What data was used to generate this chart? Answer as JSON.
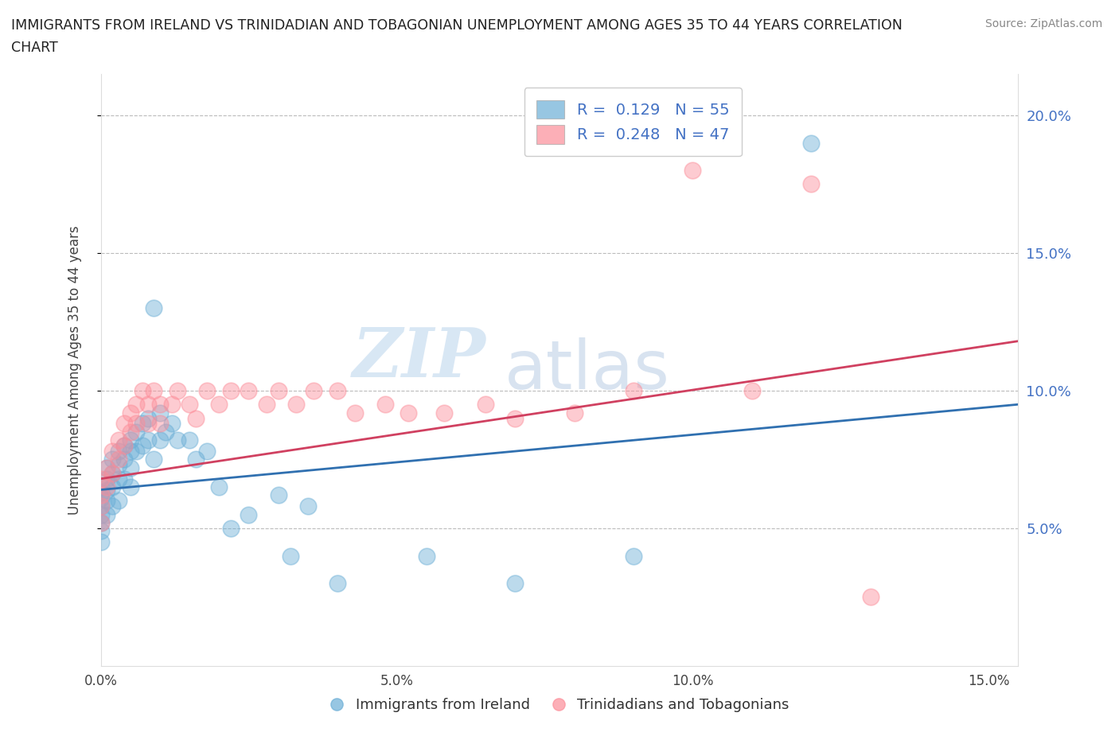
{
  "title_line1": "IMMIGRANTS FROM IRELAND VS TRINIDADIAN AND TOBAGONIAN UNEMPLOYMENT AMONG AGES 35 TO 44 YEARS CORRELATION",
  "title_line2": "CHART",
  "source": "Source: ZipAtlas.com",
  "ylabel": "Unemployment Among Ages 35 to 44 years",
  "xlim": [
    0.0,
    0.155
  ],
  "ylim": [
    0.0,
    0.215
  ],
  "xticks": [
    0.0,
    0.05,
    0.1,
    0.15
  ],
  "yticks": [
    0.05,
    0.1,
    0.15,
    0.2
  ],
  "xtick_labels": [
    "0.0%",
    "5.0%",
    "10.0%",
    "15.0%"
  ],
  "ytick_labels": [
    "5.0%",
    "10.0%",
    "15.0%",
    "20.0%"
  ],
  "legend1_label": "R =  0.129   N = 55",
  "legend2_label": "R =  0.248   N = 47",
  "legend_bottom_label1": "Immigrants from Ireland",
  "legend_bottom_label2": "Trinidadians and Tobagonians",
  "ireland_color": "#6baed6",
  "trinidad_color": "#fc8d99",
  "ireland_line_color": "#3070b0",
  "trinidad_line_color": "#d04060",
  "watermark_zip": "ZIP",
  "watermark_atlas": "atlas",
  "ireland_line_x0": 0.0,
  "ireland_line_y0": 0.064,
  "ireland_line_x1": 0.155,
  "ireland_line_y1": 0.095,
  "trinidad_line_x0": 0.0,
  "trinidad_line_y0": 0.068,
  "trinidad_line_x1": 0.155,
  "trinidad_line_y1": 0.118,
  "ireland_x": [
    0.0,
    0.0,
    0.0,
    0.0,
    0.0,
    0.0,
    0.0,
    0.0,
    0.001,
    0.001,
    0.001,
    0.001,
    0.001,
    0.002,
    0.002,
    0.002,
    0.002,
    0.003,
    0.003,
    0.003,
    0.003,
    0.004,
    0.004,
    0.004,
    0.005,
    0.005,
    0.005,
    0.005,
    0.006,
    0.006,
    0.007,
    0.007,
    0.008,
    0.008,
    0.009,
    0.009,
    0.01,
    0.01,
    0.011,
    0.012,
    0.013,
    0.015,
    0.016,
    0.018,
    0.02,
    0.022,
    0.025,
    0.03,
    0.032,
    0.035,
    0.04,
    0.055,
    0.07,
    0.09,
    0.12
  ],
  "ireland_y": [
    0.065,
    0.063,
    0.061,
    0.058,
    0.055,
    0.052,
    0.049,
    0.045,
    0.072,
    0.068,
    0.064,
    0.06,
    0.055,
    0.075,
    0.07,
    0.065,
    0.058,
    0.078,
    0.073,
    0.068,
    0.06,
    0.08,
    0.075,
    0.068,
    0.082,
    0.078,
    0.072,
    0.065,
    0.085,
    0.078,
    0.088,
    0.08,
    0.09,
    0.082,
    0.13,
    0.075,
    0.092,
    0.082,
    0.085,
    0.088,
    0.082,
    0.082,
    0.075,
    0.078,
    0.065,
    0.05,
    0.055,
    0.062,
    0.04,
    0.058,
    0.03,
    0.04,
    0.03,
    0.04,
    0.19
  ],
  "trinidad_x": [
    0.0,
    0.0,
    0.0,
    0.0,
    0.001,
    0.001,
    0.002,
    0.002,
    0.003,
    0.003,
    0.004,
    0.004,
    0.005,
    0.005,
    0.006,
    0.006,
    0.007,
    0.008,
    0.008,
    0.009,
    0.01,
    0.01,
    0.012,
    0.013,
    0.015,
    0.016,
    0.018,
    0.02,
    0.022,
    0.025,
    0.028,
    0.03,
    0.033,
    0.036,
    0.04,
    0.043,
    0.048,
    0.052,
    0.058,
    0.065,
    0.07,
    0.08,
    0.09,
    0.1,
    0.11,
    0.12,
    0.13
  ],
  "trinidad_y": [
    0.068,
    0.062,
    0.058,
    0.052,
    0.072,
    0.065,
    0.078,
    0.07,
    0.082,
    0.075,
    0.088,
    0.08,
    0.092,
    0.085,
    0.095,
    0.088,
    0.1,
    0.095,
    0.088,
    0.1,
    0.095,
    0.088,
    0.095,
    0.1,
    0.095,
    0.09,
    0.1,
    0.095,
    0.1,
    0.1,
    0.095,
    0.1,
    0.095,
    0.1,
    0.1,
    0.092,
    0.095,
    0.092,
    0.092,
    0.095,
    0.09,
    0.092,
    0.1,
    0.18,
    0.1,
    0.175,
    0.025
  ]
}
